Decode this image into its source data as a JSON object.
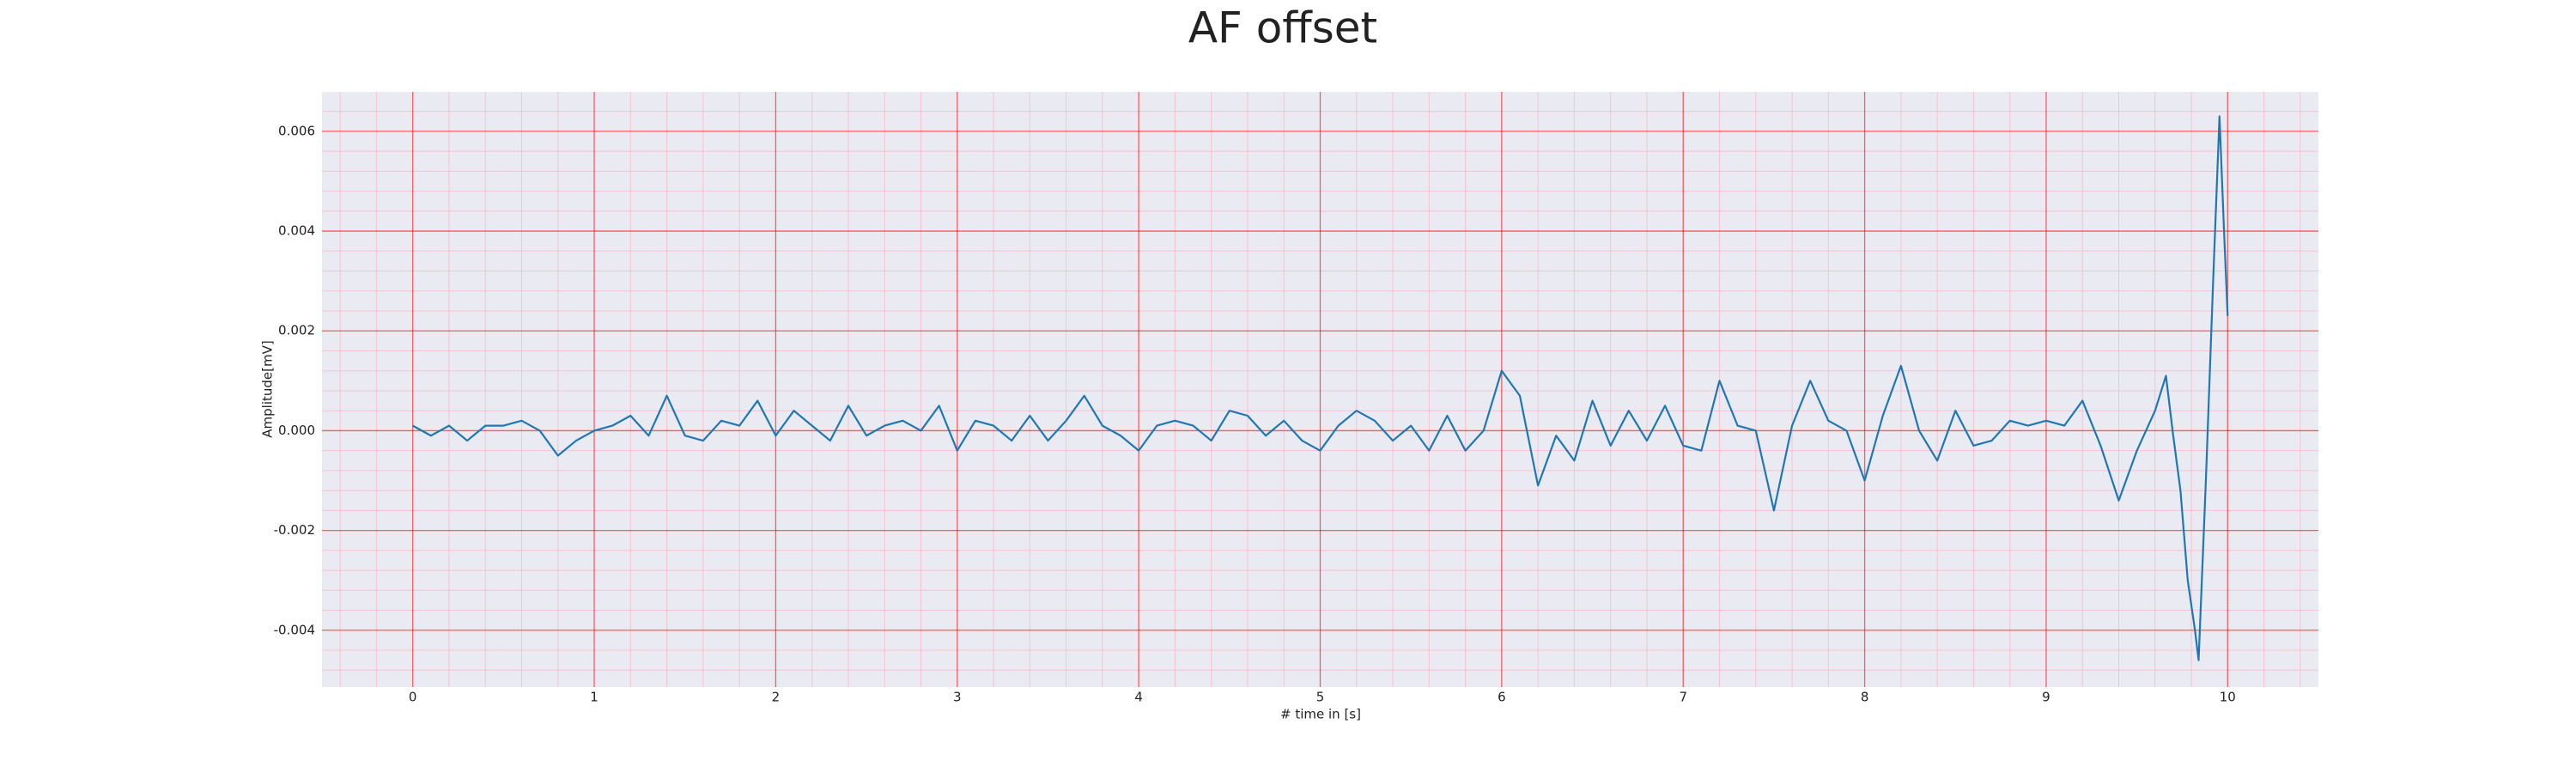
{
  "chart_data": {
    "type": "line",
    "title": "AF offset",
    "xlabel": "# time in [s]",
    "ylabel": "Amplitude[mV]",
    "x": [
      0,
      0.1,
      0.2,
      0.3,
      0.4,
      0.5,
      0.6,
      0.7,
      0.8,
      0.9,
      1,
      1.1,
      1.2,
      1.3,
      1.4,
      1.5,
      1.6,
      1.7,
      1.8,
      1.9,
      2,
      2.1,
      2.2,
      2.3,
      2.4,
      2.5,
      2.6,
      2.7,
      2.8,
      2.9,
      3,
      3.1,
      3.2,
      3.3,
      3.4,
      3.5,
      3.6,
      3.7,
      3.8,
      3.9,
      4,
      4.1,
      4.2,
      4.3,
      4.4,
      4.5,
      4.6,
      4.7,
      4.8,
      4.9,
      5,
      5.1,
      5.2,
      5.3,
      5.4,
      5.5,
      5.6,
      5.7,
      5.8,
      5.9,
      6,
      6.1,
      6.2,
      6.3,
      6.4,
      6.5,
      6.6,
      6.7,
      6.8,
      6.9,
      7,
      7.1,
      7.2,
      7.3,
      7.4,
      7.5,
      7.6,
      7.7,
      7.8,
      7.9,
      8,
      8.1,
      8.2,
      8.3,
      8.4,
      8.5,
      8.6,
      8.7,
      8.8,
      8.9,
      9,
      9.1,
      9.2,
      9.3,
      9.4,
      9.5,
      9.6,
      9.66,
      9.7,
      9.74,
      9.78,
      9.82,
      9.84,
      9.88,
      9.92,
      9.955,
      9.98,
      10
    ],
    "series": [
      {
        "name": "AF offset",
        "color": "#1f77b4",
        "values": [
          0.0001,
          -0.0001,
          0.0001,
          -0.0002,
          0.0001,
          0.0001,
          0.0002,
          0,
          -0.0005,
          -0.0002,
          0,
          0.0001,
          0.0003,
          -0.0001,
          0.0007,
          -0.0001,
          -0.0002,
          0.0002,
          0.0001,
          0.0006,
          -0.0001,
          0.0004,
          0.0001,
          -0.0002,
          0.0005,
          -0.0001,
          0.0001,
          0.0002,
          0,
          0.0005,
          -0.0004,
          0.0002,
          0.0001,
          -0.0002,
          0.0003,
          -0.0002,
          0.0002,
          0.0007,
          0.0001,
          -0.0001,
          -0.0004,
          0.0001,
          0.0002,
          0.0001,
          -0.0002,
          0.0004,
          0.0003,
          -0.0001,
          0.0002,
          -0.0002,
          -0.0004,
          0.0001,
          0.0004,
          0.0002,
          -0.0002,
          0.0001,
          -0.0004,
          0.0003,
          -0.0004,
          0,
          0.0012,
          0.0007,
          -0.0011,
          -0.0001,
          -0.0006,
          0.0006,
          -0.0003,
          0.0004,
          -0.0002,
          0.0005,
          -0.0003,
          -0.0004,
          0.001,
          0.0001,
          0,
          -0.0016,
          0.0001,
          0.001,
          0.0002,
          0,
          -0.001,
          0.0003,
          0.0013,
          0,
          -0.0006,
          0.0004,
          -0.0003,
          -0.0002,
          0.0002,
          0.0001,
          0.0002,
          0.0001,
          0.0006,
          -0.0003,
          -0.0014,
          -0.0004,
          0.0004,
          0.0011,
          -0.0001,
          -0.0012,
          -0.003,
          -0.004,
          -0.0046,
          -0.001,
          0.003,
          0.0063,
          0.004,
          0.0023
        ]
      }
    ],
    "xlim": [
      -0.5,
      10.5
    ],
    "xticks": [
      0,
      1,
      2,
      3,
      4,
      5,
      6,
      7,
      8,
      9,
      10
    ],
    "ylim": [
      -0.00514,
      0.00679
    ],
    "yticks": [
      -0.004,
      -0.002,
      {
        "value": 0,
        "label": "0.000"
      },
      0.002,
      0.004,
      0.006
    ],
    "grid": true,
    "grid_color": "#ff0000",
    "minor_grid_color": "#ffb0c0",
    "minor_divisions": 5,
    "background": "#eaeaf2"
  }
}
